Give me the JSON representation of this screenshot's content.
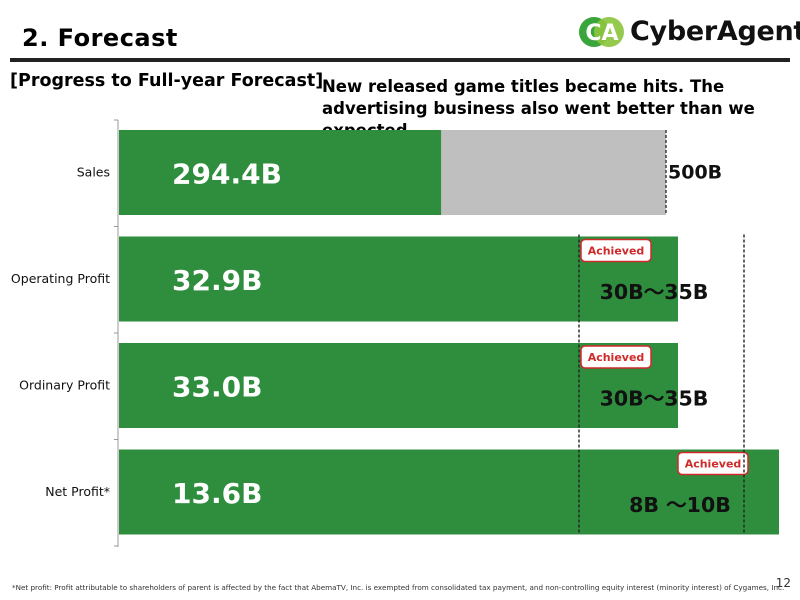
{
  "header": {
    "title": "2. Forecast",
    "brand": "CyberAgent",
    "brand_mark": "CA"
  },
  "section_title": "[Progress to Full-year Forecast]",
  "commentary": "New released game titles became hits. The advertising business also went better than we expected.",
  "footnote": "*Net profit: Profit attributable to shareholders of parent is affected by the fact that AbemaTV, Inc. is exempted from consolidated tax payment, and non-controlling equity interest (minority interest) of Cygames, Inc.",
  "page_number": "12",
  "colors": {
    "actual": "#2f8d3e",
    "remaining": "#bfbfbf",
    "badge_border": "#d02a2a",
    "brand_green": "#3aa53a",
    "brand_light_green": "#8cc63f"
  },
  "chart_data": {
    "type": "bar",
    "orientation": "horizontal",
    "categories": [
      "Sales",
      "Operating Profit",
      "Ordinary Profit",
      "Net Profit*"
    ],
    "series": [
      {
        "values": [
          294.4,
          32.9,
          33.0,
          13.6
        ],
        "labels": [
          "294.4B",
          "32.9B",
          "33.0B",
          "13.6B"
        ]
      }
    ],
    "forecast_labels": [
      "500B",
      "30B～35B",
      "30B～35B",
      "8B ～10B"
    ],
    "forecast_ranges": [
      [
        500,
        500
      ],
      [
        30,
        35
      ],
      [
        30,
        35
      ],
      [
        8,
        10
      ]
    ],
    "achieved": [
      false,
      true,
      true,
      true
    ],
    "achieved_label": "Achieved",
    "legend": "none",
    "grid": false
  }
}
